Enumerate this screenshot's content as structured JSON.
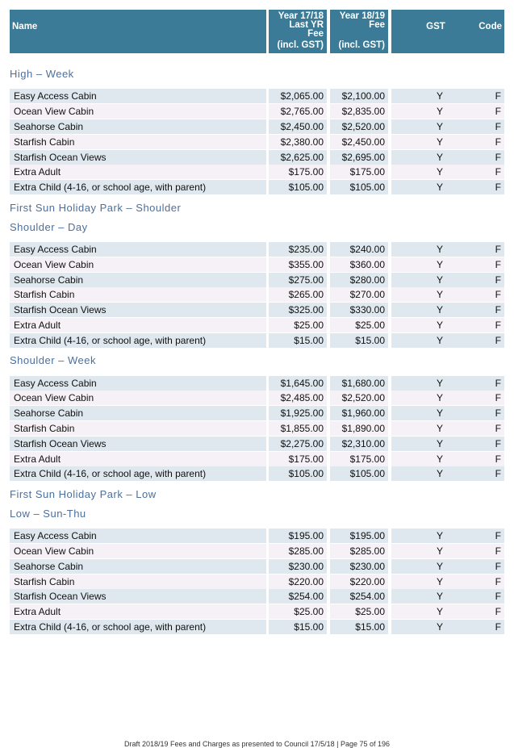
{
  "header": {
    "name": "Name",
    "last_year": [
      "Year 17/18",
      "Last YR",
      "Fee",
      "(incl. GST)"
    ],
    "this_year": [
      "Year 18/19",
      "Fee",
      "(incl. GST)"
    ],
    "gst": "GST",
    "code": "Code"
  },
  "blocks": [
    {
      "heading": "High – Week",
      "rows": [
        [
          "Easy Access Cabin",
          "$2,065.00",
          "$2,100.00",
          "Y",
          "F"
        ],
        [
          "Ocean View Cabin",
          "$2,765.00",
          "$2,835.00",
          "Y",
          "F"
        ],
        [
          "Seahorse Cabin",
          "$2,450.00",
          "$2,520.00",
          "Y",
          "F"
        ],
        [
          "Starfish Cabin",
          "$2,380.00",
          "$2,450.00",
          "Y",
          "F"
        ],
        [
          "Starfish Ocean Views",
          "$2,625.00",
          "$2,695.00",
          "Y",
          "F"
        ],
        [
          "Extra Adult",
          "$175.00",
          "$175.00",
          "Y",
          "F"
        ],
        [
          "Extra Child (4-16, or school age, with parent)",
          "$105.00",
          "$105.00",
          "Y",
          "F"
        ]
      ]
    },
    {
      "heading": "First Sun Holiday Park – Shoulder"
    },
    {
      "heading": "Shoulder – Day",
      "rows": [
        [
          "Easy Access Cabin",
          "$235.00",
          "$240.00",
          "Y",
          "F"
        ],
        [
          "Ocean View Cabin",
          "$355.00",
          "$360.00",
          "Y",
          "F"
        ],
        [
          "Seahorse Cabin",
          "$275.00",
          "$280.00",
          "Y",
          "F"
        ],
        [
          "Starfish Cabin",
          "$265.00",
          "$270.00",
          "Y",
          "F"
        ],
        [
          "Starfish Ocean Views",
          "$325.00",
          "$330.00",
          "Y",
          "F"
        ],
        [
          "Extra Adult",
          "$25.00",
          "$25.00",
          "Y",
          "F"
        ],
        [
          "Extra Child (4-16, or school age, with parent)",
          "$15.00",
          "$15.00",
          "Y",
          "F"
        ]
      ]
    },
    {
      "heading": "Shoulder – Week",
      "rows": [
        [
          "Easy Access Cabin",
          "$1,645.00",
          "$1,680.00",
          "Y",
          "F"
        ],
        [
          "Ocean View Cabin",
          "$2,485.00",
          "$2,520.00",
          "Y",
          "F"
        ],
        [
          "Seahorse Cabin",
          "$1,925.00",
          "$1,960.00",
          "Y",
          "F"
        ],
        [
          "Starfish Cabin",
          "$1,855.00",
          "$1,890.00",
          "Y",
          "F"
        ],
        [
          "Starfish Ocean Views",
          "$2,275.00",
          "$2,310.00",
          "Y",
          "F"
        ],
        [
          "Extra Adult",
          "$175.00",
          "$175.00",
          "Y",
          "F"
        ],
        [
          "Extra Child (4-16, or school age, with parent)",
          "$105.00",
          "$105.00",
          "Y",
          "F"
        ]
      ]
    },
    {
      "heading": "First Sun Holiday Park – Low"
    },
    {
      "heading": "Low – Sun-Thu",
      "rows": [
        [
          "Easy Access Cabin",
          "$195.00",
          "$195.00",
          "Y",
          "F"
        ],
        [
          "Ocean View Cabin",
          "$285.00",
          "$285.00",
          "Y",
          "F"
        ],
        [
          "Seahorse Cabin",
          "$230.00",
          "$230.00",
          "Y",
          "F"
        ],
        [
          "Starfish Cabin",
          "$220.00",
          "$220.00",
          "Y",
          "F"
        ],
        [
          "Starfish Ocean Views",
          "$254.00",
          "$254.00",
          "Y",
          "F"
        ],
        [
          "Extra Adult",
          "$25.00",
          "$25.00",
          "Y",
          "F"
        ],
        [
          "Extra Child (4-16, or school age, with parent)",
          "$15.00",
          "$15.00",
          "Y",
          "F"
        ]
      ]
    }
  ],
  "footer": "Draft 2018/19 Fees and Charges as presented to Council 17/5/18 | Page 75 of 196"
}
